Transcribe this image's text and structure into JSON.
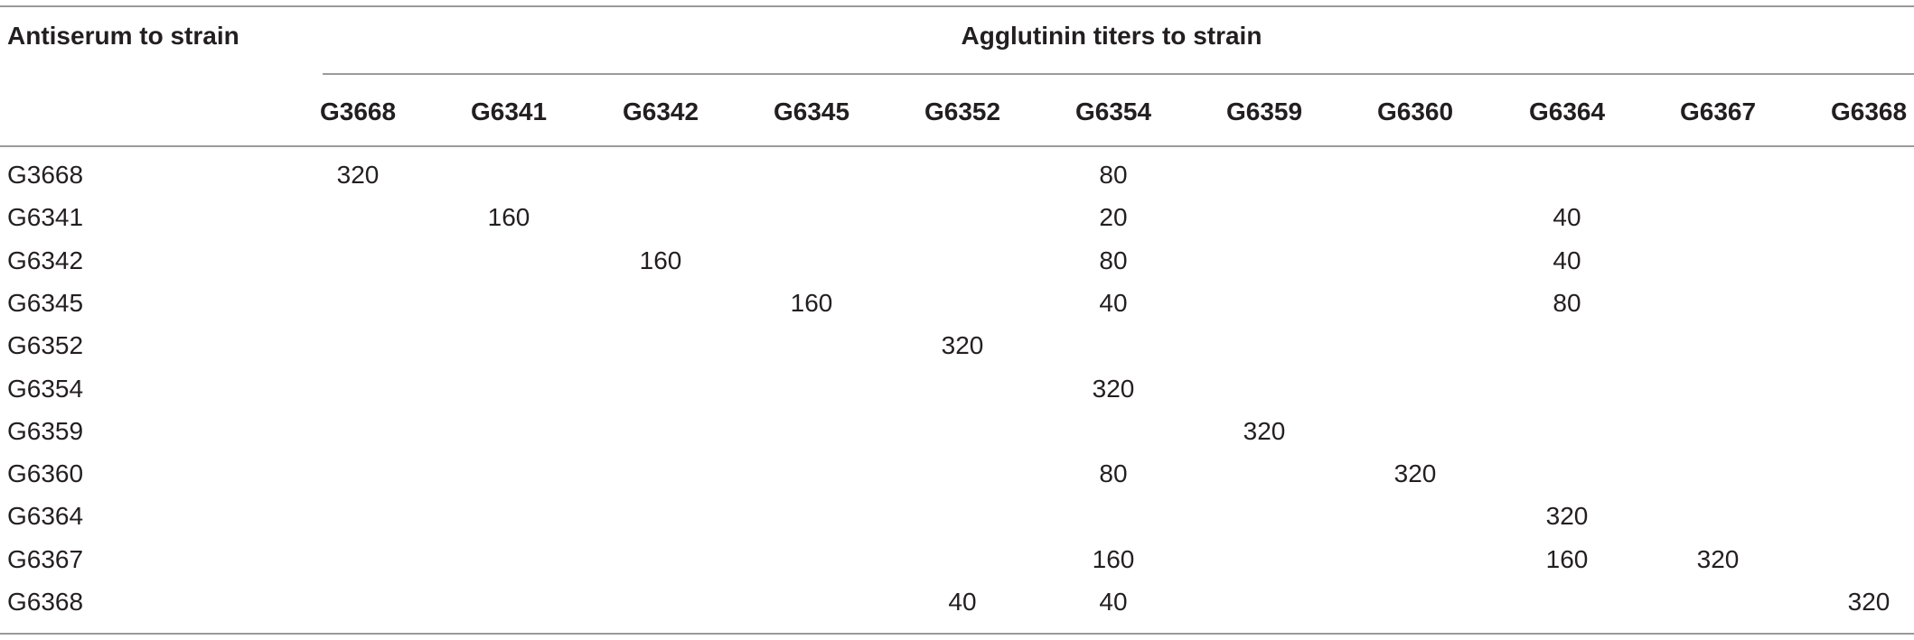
{
  "table": {
    "row_header_title": "Antiserum to strain",
    "group_title": "Agglutinin titers to strain",
    "columns": [
      "G3668",
      "G6341",
      "G6342",
      "G6345",
      "G6352",
      "G6354",
      "G6359",
      "G6360",
      "G6364",
      "G6367",
      "G6368"
    ],
    "rows": [
      {
        "label": "G3668",
        "cells": [
          "320",
          "",
          "",
          "",
          "",
          "80",
          "",
          "",
          "",
          "",
          ""
        ]
      },
      {
        "label": "G6341",
        "cells": [
          "",
          "160",
          "",
          "",
          "",
          "20",
          "",
          "",
          "40",
          "",
          ""
        ]
      },
      {
        "label": "G6342",
        "cells": [
          "",
          "",
          "160",
          "",
          "",
          "80",
          "",
          "",
          "40",
          "",
          ""
        ]
      },
      {
        "label": "G6345",
        "cells": [
          "",
          "",
          "",
          "160",
          "",
          "40",
          "",
          "",
          "80",
          "",
          ""
        ]
      },
      {
        "label": "G6352",
        "cells": [
          "",
          "",
          "",
          "",
          "320",
          "",
          "",
          "",
          "",
          "",
          ""
        ]
      },
      {
        "label": "G6354",
        "cells": [
          "",
          "",
          "",
          "",
          "",
          "320",
          "",
          "",
          "",
          "",
          ""
        ]
      },
      {
        "label": "G6359",
        "cells": [
          "",
          "",
          "",
          "",
          "",
          "",
          "320",
          "",
          "",
          "",
          ""
        ]
      },
      {
        "label": "G6360",
        "cells": [
          "",
          "",
          "",
          "",
          "",
          "80",
          "",
          "320",
          "",
          "",
          ""
        ]
      },
      {
        "label": "G6364",
        "cells": [
          "",
          "",
          "",
          "",
          "",
          "",
          "",
          "",
          "320",
          "",
          ""
        ]
      },
      {
        "label": "G6367",
        "cells": [
          "",
          "",
          "",
          "",
          "",
          "160",
          "",
          "",
          "160",
          "320",
          ""
        ]
      },
      {
        "label": "G6368",
        "cells": [
          "",
          "",
          "",
          "",
          "40",
          "40",
          "",
          "",
          "",
          "",
          "320"
        ]
      }
    ]
  }
}
